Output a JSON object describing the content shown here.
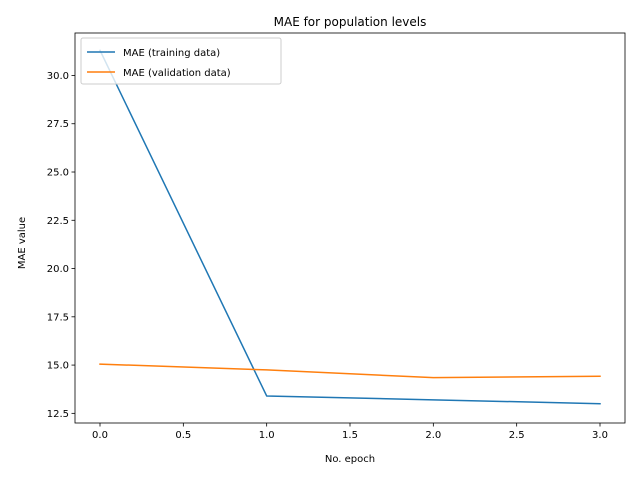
{
  "chart_data": {
    "type": "line",
    "title": "MAE for population levels",
    "xlabel": "No. epoch",
    "ylabel": "MAE value",
    "xlim": [
      -0.15,
      3.15
    ],
    "ylim": [
      12.0,
      32.2
    ],
    "x": [
      0,
      1,
      2,
      3
    ],
    "xticks": [
      0.0,
      0.5,
      1.0,
      1.5,
      2.0,
      2.5,
      3.0
    ],
    "xtick_labels": [
      "0.0",
      "0.5",
      "1.0",
      "1.5",
      "2.0",
      "2.5",
      "3.0"
    ],
    "yticks": [
      12.5,
      15.0,
      17.5,
      20.0,
      22.5,
      25.0,
      27.5,
      30.0
    ],
    "ytick_labels": [
      "12.5",
      "15.0",
      "17.5",
      "20.0",
      "22.5",
      "25.0",
      "27.5",
      "30.0"
    ],
    "grid": false,
    "legend_position": "top-left",
    "series": [
      {
        "name": "MAE (training data)",
        "color": "#1f77b4",
        "values": [
          31.3,
          13.4,
          13.2,
          13.0
        ]
      },
      {
        "name": "MAE (validation data)",
        "color": "#ff7f0e",
        "values": [
          15.05,
          14.75,
          14.35,
          14.42
        ]
      }
    ]
  }
}
